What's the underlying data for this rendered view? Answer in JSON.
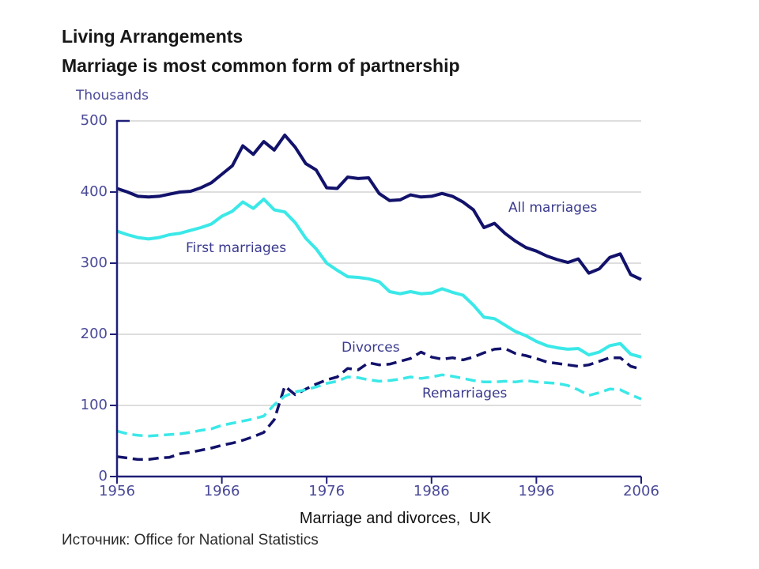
{
  "page": {
    "title": "Living Arrangements",
    "subtitle": "Marriage is most common form of partnership",
    "caption": "Marriage and divorces,  UK",
    "source": "Источник: Office for National Statistics"
  },
  "colors": {
    "navy_line": "#12126B",
    "cyan_line": "#3BE8E8",
    "axis": "#1F1F78",
    "gridline": "#C9C9C9",
    "tick_label": "#4A4A99",
    "annotation": "#3A3A8F",
    "background": "#FFFFFF"
  },
  "chart_data": {
    "type": "line",
    "title": "Marriage and divorces, UK",
    "unit_label": "Thousands",
    "xlabel": "",
    "ylabel": "Thousands",
    "xlim": [
      1956,
      2006
    ],
    "ylim": [
      0,
      500
    ],
    "x_ticks": [
      1956,
      1966,
      1976,
      1986,
      1996,
      2006
    ],
    "y_ticks": [
      0,
      100,
      200,
      300,
      400,
      500
    ],
    "grid": "horizontal",
    "legend": "inline-annotations",
    "series": [
      {
        "name": "all_marriages",
        "label": "All marriages",
        "style": "solid",
        "color": "#12126B",
        "points": [
          [
            1956,
            405
          ],
          [
            1957,
            400
          ],
          [
            1958,
            394
          ],
          [
            1959,
            393
          ],
          [
            1960,
            394
          ],
          [
            1961,
            397
          ],
          [
            1962,
            400
          ],
          [
            1963,
            401
          ],
          [
            1964,
            406
          ],
          [
            1965,
            413
          ],
          [
            1966,
            425
          ],
          [
            1967,
            437
          ],
          [
            1968,
            465
          ],
          [
            1969,
            453
          ],
          [
            1970,
            471
          ],
          [
            1971,
            459
          ],
          [
            1972,
            480
          ],
          [
            1973,
            463
          ],
          [
            1974,
            440
          ],
          [
            1975,
            431
          ],
          [
            1976,
            406
          ],
          [
            1977,
            405
          ],
          [
            1978,
            421
          ],
          [
            1979,
            419
          ],
          [
            1980,
            420
          ],
          [
            1981,
            398
          ],
          [
            1982,
            388
          ],
          [
            1983,
            389
          ],
          [
            1984,
            396
          ],
          [
            1985,
            393
          ],
          [
            1986,
            394
          ],
          [
            1987,
            398
          ],
          [
            1988,
            394
          ],
          [
            1989,
            386
          ],
          [
            1990,
            375
          ],
          [
            1991,
            350
          ],
          [
            1992,
            356
          ],
          [
            1993,
            342
          ],
          [
            1994,
            331
          ],
          [
            1995,
            322
          ],
          [
            1996,
            317
          ],
          [
            1997,
            310
          ],
          [
            1998,
            305
          ],
          [
            1999,
            301
          ],
          [
            2000,
            306
          ],
          [
            2001,
            286
          ],
          [
            2002,
            292
          ],
          [
            2003,
            308
          ],
          [
            2004,
            313
          ],
          [
            2005,
            284
          ],
          [
            2006,
            277
          ]
        ]
      },
      {
        "name": "first_marriages",
        "label": "First marriages",
        "style": "solid",
        "color": "#3BE8E8",
        "points": [
          [
            1956,
            345
          ],
          [
            1957,
            340
          ],
          [
            1958,
            336
          ],
          [
            1959,
            334
          ],
          [
            1960,
            336
          ],
          [
            1961,
            340
          ],
          [
            1962,
            342
          ],
          [
            1963,
            346
          ],
          [
            1964,
            350
          ],
          [
            1965,
            355
          ],
          [
            1966,
            366
          ],
          [
            1967,
            373
          ],
          [
            1968,
            386
          ],
          [
            1969,
            377
          ],
          [
            1970,
            390
          ],
          [
            1971,
            375
          ],
          [
            1972,
            372
          ],
          [
            1973,
            357
          ],
          [
            1974,
            335
          ],
          [
            1975,
            320
          ],
          [
            1976,
            300
          ],
          [
            1977,
            290
          ],
          [
            1978,
            281
          ],
          [
            1979,
            280
          ],
          [
            1980,
            278
          ],
          [
            1981,
            274
          ],
          [
            1982,
            260
          ],
          [
            1983,
            257
          ],
          [
            1984,
            260
          ],
          [
            1985,
            257
          ],
          [
            1986,
            258
          ],
          [
            1987,
            264
          ],
          [
            1988,
            259
          ],
          [
            1989,
            255
          ],
          [
            1990,
            241
          ],
          [
            1991,
            224
          ],
          [
            1992,
            222
          ],
          [
            1993,
            213
          ],
          [
            1994,
            204
          ],
          [
            1995,
            198
          ],
          [
            1996,
            190
          ],
          [
            1997,
            184
          ],
          [
            1998,
            181
          ],
          [
            1999,
            179
          ],
          [
            2000,
            180
          ],
          [
            2001,
            171
          ],
          [
            2002,
            175
          ],
          [
            2003,
            184
          ],
          [
            2004,
            187
          ],
          [
            2005,
            172
          ],
          [
            2006,
            168
          ]
        ]
      },
      {
        "name": "divorces",
        "label": "Divorces",
        "style": "dashed",
        "color": "#12126B",
        "points": [
          [
            1956,
            28
          ],
          [
            1957,
            26
          ],
          [
            1958,
            24
          ],
          [
            1959,
            24
          ],
          [
            1960,
            26
          ],
          [
            1961,
            27
          ],
          [
            1962,
            32
          ],
          [
            1963,
            34
          ],
          [
            1964,
            37
          ],
          [
            1965,
            40
          ],
          [
            1966,
            44
          ],
          [
            1967,
            47
          ],
          [
            1968,
            51
          ],
          [
            1969,
            56
          ],
          [
            1970,
            62
          ],
          [
            1971,
            80
          ],
          [
            1972,
            127
          ],
          [
            1973,
            115
          ],
          [
            1974,
            123
          ],
          [
            1975,
            130
          ],
          [
            1976,
            136
          ],
          [
            1977,
            140
          ],
          [
            1978,
            152
          ],
          [
            1979,
            150
          ],
          [
            1980,
            160
          ],
          [
            1981,
            157
          ],
          [
            1982,
            158
          ],
          [
            1983,
            162
          ],
          [
            1984,
            166
          ],
          [
            1985,
            175
          ],
          [
            1986,
            168
          ],
          [
            1987,
            165
          ],
          [
            1988,
            167
          ],
          [
            1989,
            164
          ],
          [
            1990,
            168
          ],
          [
            1991,
            174
          ],
          [
            1992,
            179
          ],
          [
            1993,
            180
          ],
          [
            1994,
            173
          ],
          [
            1995,
            170
          ],
          [
            1996,
            166
          ],
          [
            1997,
            161
          ],
          [
            1998,
            159
          ],
          [
            1999,
            157
          ],
          [
            2000,
            155
          ],
          [
            2001,
            157
          ],
          [
            2002,
            162
          ],
          [
            2003,
            167
          ],
          [
            2004,
            167
          ],
          [
            2005,
            155
          ],
          [
            2006,
            151
          ]
        ]
      },
      {
        "name": "remarriages",
        "label": "Remarriages",
        "style": "dashed",
        "color": "#3BE8E8",
        "points": [
          [
            1956,
            64
          ],
          [
            1957,
            60
          ],
          [
            1958,
            58
          ],
          [
            1959,
            57
          ],
          [
            1960,
            58
          ],
          [
            1961,
            59
          ],
          [
            1962,
            60
          ],
          [
            1963,
            62
          ],
          [
            1964,
            65
          ],
          [
            1965,
            67
          ],
          [
            1966,
            72
          ],
          [
            1967,
            75
          ],
          [
            1968,
            78
          ],
          [
            1969,
            81
          ],
          [
            1970,
            85
          ],
          [
            1971,
            101
          ],
          [
            1972,
            113
          ],
          [
            1973,
            119
          ],
          [
            1974,
            122
          ],
          [
            1975,
            126
          ],
          [
            1976,
            131
          ],
          [
            1977,
            134
          ],
          [
            1978,
            140
          ],
          [
            1979,
            139
          ],
          [
            1980,
            136
          ],
          [
            1981,
            134
          ],
          [
            1982,
            135
          ],
          [
            1983,
            137
          ],
          [
            1984,
            140
          ],
          [
            1985,
            138
          ],
          [
            1986,
            140
          ],
          [
            1987,
            143
          ],
          [
            1988,
            141
          ],
          [
            1989,
            138
          ],
          [
            1990,
            135
          ],
          [
            1991,
            133
          ],
          [
            1992,
            133
          ],
          [
            1993,
            134
          ],
          [
            1994,
            133
          ],
          [
            1995,
            135
          ],
          [
            1996,
            133
          ],
          [
            1997,
            132
          ],
          [
            1998,
            131
          ],
          [
            1999,
            128
          ],
          [
            2000,
            122
          ],
          [
            2001,
            114
          ],
          [
            2002,
            118
          ],
          [
            2003,
            123
          ],
          [
            2004,
            122
          ],
          [
            2005,
            115
          ],
          [
            2006,
            109
          ]
        ]
      }
    ]
  }
}
